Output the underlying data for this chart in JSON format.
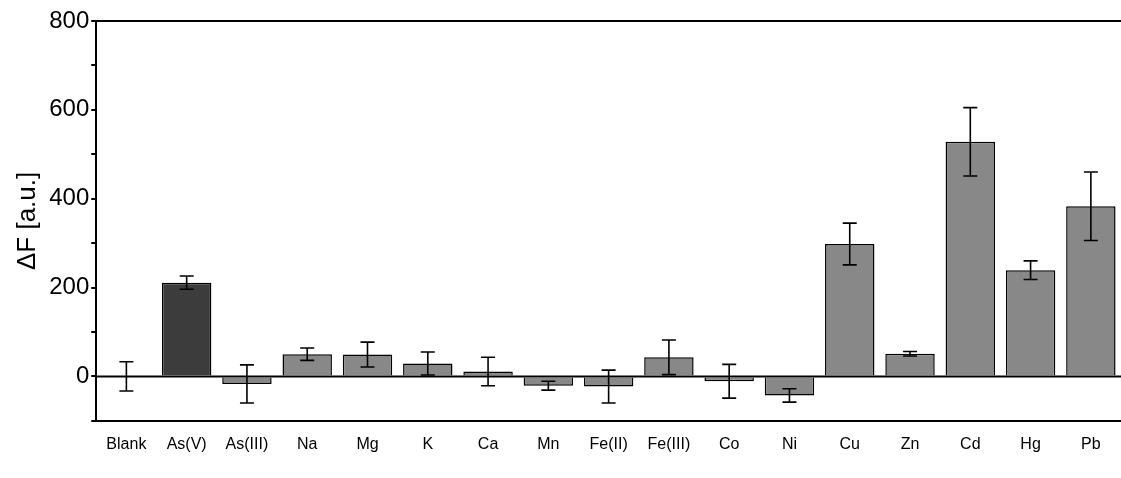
{
  "chart_data": {
    "type": "bar",
    "ylabel": "ΔF [a.u.]",
    "categories": [
      "Blank",
      "As(V)",
      "As(III)",
      "Na",
      "Mg",
      "K",
      "Ca",
      "Mn",
      "Fe(II)",
      "Fe(III)",
      "Co",
      "Ni",
      "Cu",
      "Zn",
      "Cd",
      "Hg",
      "Pb"
    ],
    "values": [
      0,
      211,
      -17,
      50,
      49,
      29,
      11,
      -21,
      -23,
      43,
      -11,
      -43,
      298,
      51,
      528,
      239,
      383
    ],
    "errors": [
      33,
      15,
      43,
      14,
      28,
      26,
      32,
      10,
      37,
      39,
      38,
      15,
      47,
      5,
      77,
      21,
      77
    ],
    "colors": [
      "#888888",
      "#3c3c3c",
      "#888888",
      "#888888",
      "#888888",
      "#888888",
      "#888888",
      "#888888",
      "#888888",
      "#888888",
      "#888888",
      "#888888",
      "#888888",
      "#888888",
      "#888888",
      "#888888",
      "#888888"
    ],
    "ylim": [
      -100,
      800
    ],
    "yticks": [
      {
        "value": -100,
        "label": null
      },
      0,
      {
        "value": 100,
        "label": null
      },
      200,
      {
        "value": 300,
        "label": null
      },
      400,
      {
        "value": 500,
        "label": null
      },
      600,
      {
        "value": 700,
        "label": null
      },
      800
    ],
    "ref_lines": [
      {
        "axis": "y",
        "value": 0,
        "color": "#000000"
      }
    ],
    "grid": false,
    "legend": false
  }
}
